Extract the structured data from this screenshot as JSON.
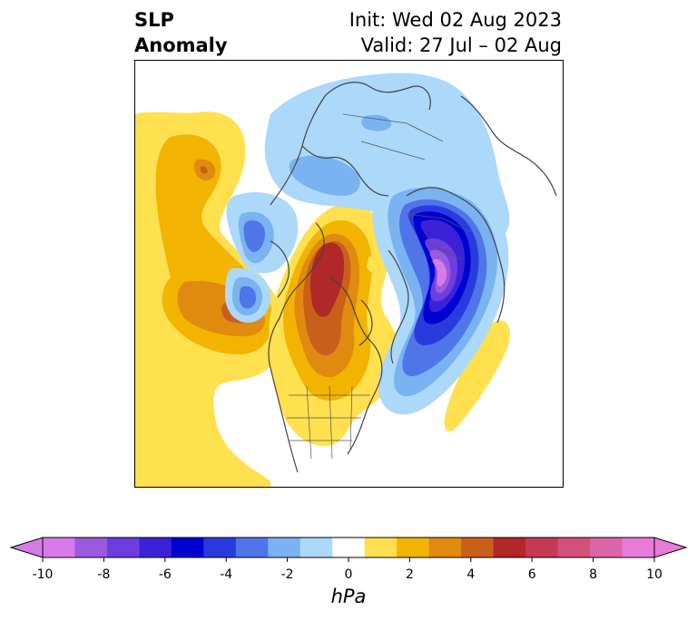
{
  "header": {
    "title_line1": "SLP",
    "title_line2": "Anomaly",
    "init_line": "Init: Wed 02 Aug 2023",
    "valid_line": "Valid: 27 Jul – 02 Aug"
  },
  "colorbar": {
    "unit": "hPa",
    "tick_labels": [
      "-10",
      "-8",
      "-6",
      "-4",
      "-2",
      "0",
      "2",
      "4",
      "6",
      "8",
      "10"
    ],
    "colors": [
      "#d77be8",
      "#9a5ae0",
      "#6c3ee0",
      "#3b22d8",
      "#0000d0",
      "#2a3bde",
      "#4f75e8",
      "#7ab2f2",
      "#acd8fa",
      "#ffffff",
      "#ffe04f",
      "#f2b400",
      "#e08a10",
      "#c8601a",
      "#b02828",
      "#c43a55",
      "#d2507a",
      "#dc64a8",
      "#e87ad8"
    ]
  },
  "map": {
    "projection": "north-polar-stereographic",
    "features": [
      {
        "name": "positive-anomaly-north-america",
        "sign": "positive",
        "max_hpa": 7
      },
      {
        "name": "positive-anomaly-north-pacific",
        "sign": "positive",
        "max_hpa": 5
      },
      {
        "name": "positive-anomaly-mid-atlantic",
        "sign": "positive",
        "max_hpa": 2
      },
      {
        "name": "negative-anomaly-europe",
        "sign": "negative",
        "min_hpa": -8
      },
      {
        "name": "negative-anomaly-east-siberia",
        "sign": "negative",
        "min_hpa": -3
      },
      {
        "name": "negative-anomaly-arctic-asia",
        "sign": "negative",
        "min_hpa": -2
      }
    ]
  }
}
